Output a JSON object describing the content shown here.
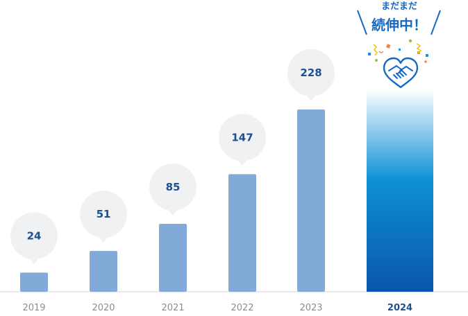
{
  "chart_data": {
    "type": "bar",
    "categories": [
      "2019",
      "2020",
      "2021",
      "2022",
      "2023",
      "2024"
    ],
    "values": [
      24,
      51,
      85,
      147,
      228,
      null
    ],
    "ylim": [
      0,
      320
    ],
    "grid": false,
    "legend": "none",
    "highlight_category": "2024",
    "callout": {
      "line1": "まだまだ",
      "line2": "続伸中！",
      "icon": "handshake-heart-icon"
    },
    "colors": {
      "bar": "#82aad8",
      "bubble": "#f0f1f2",
      "value_text": "#1d4f91",
      "axis_label": "#8c8c8c",
      "highlight_top": "#ffffff",
      "highlight_bottom": "#0a55ad",
      "callout_text": "#1668c5"
    }
  }
}
